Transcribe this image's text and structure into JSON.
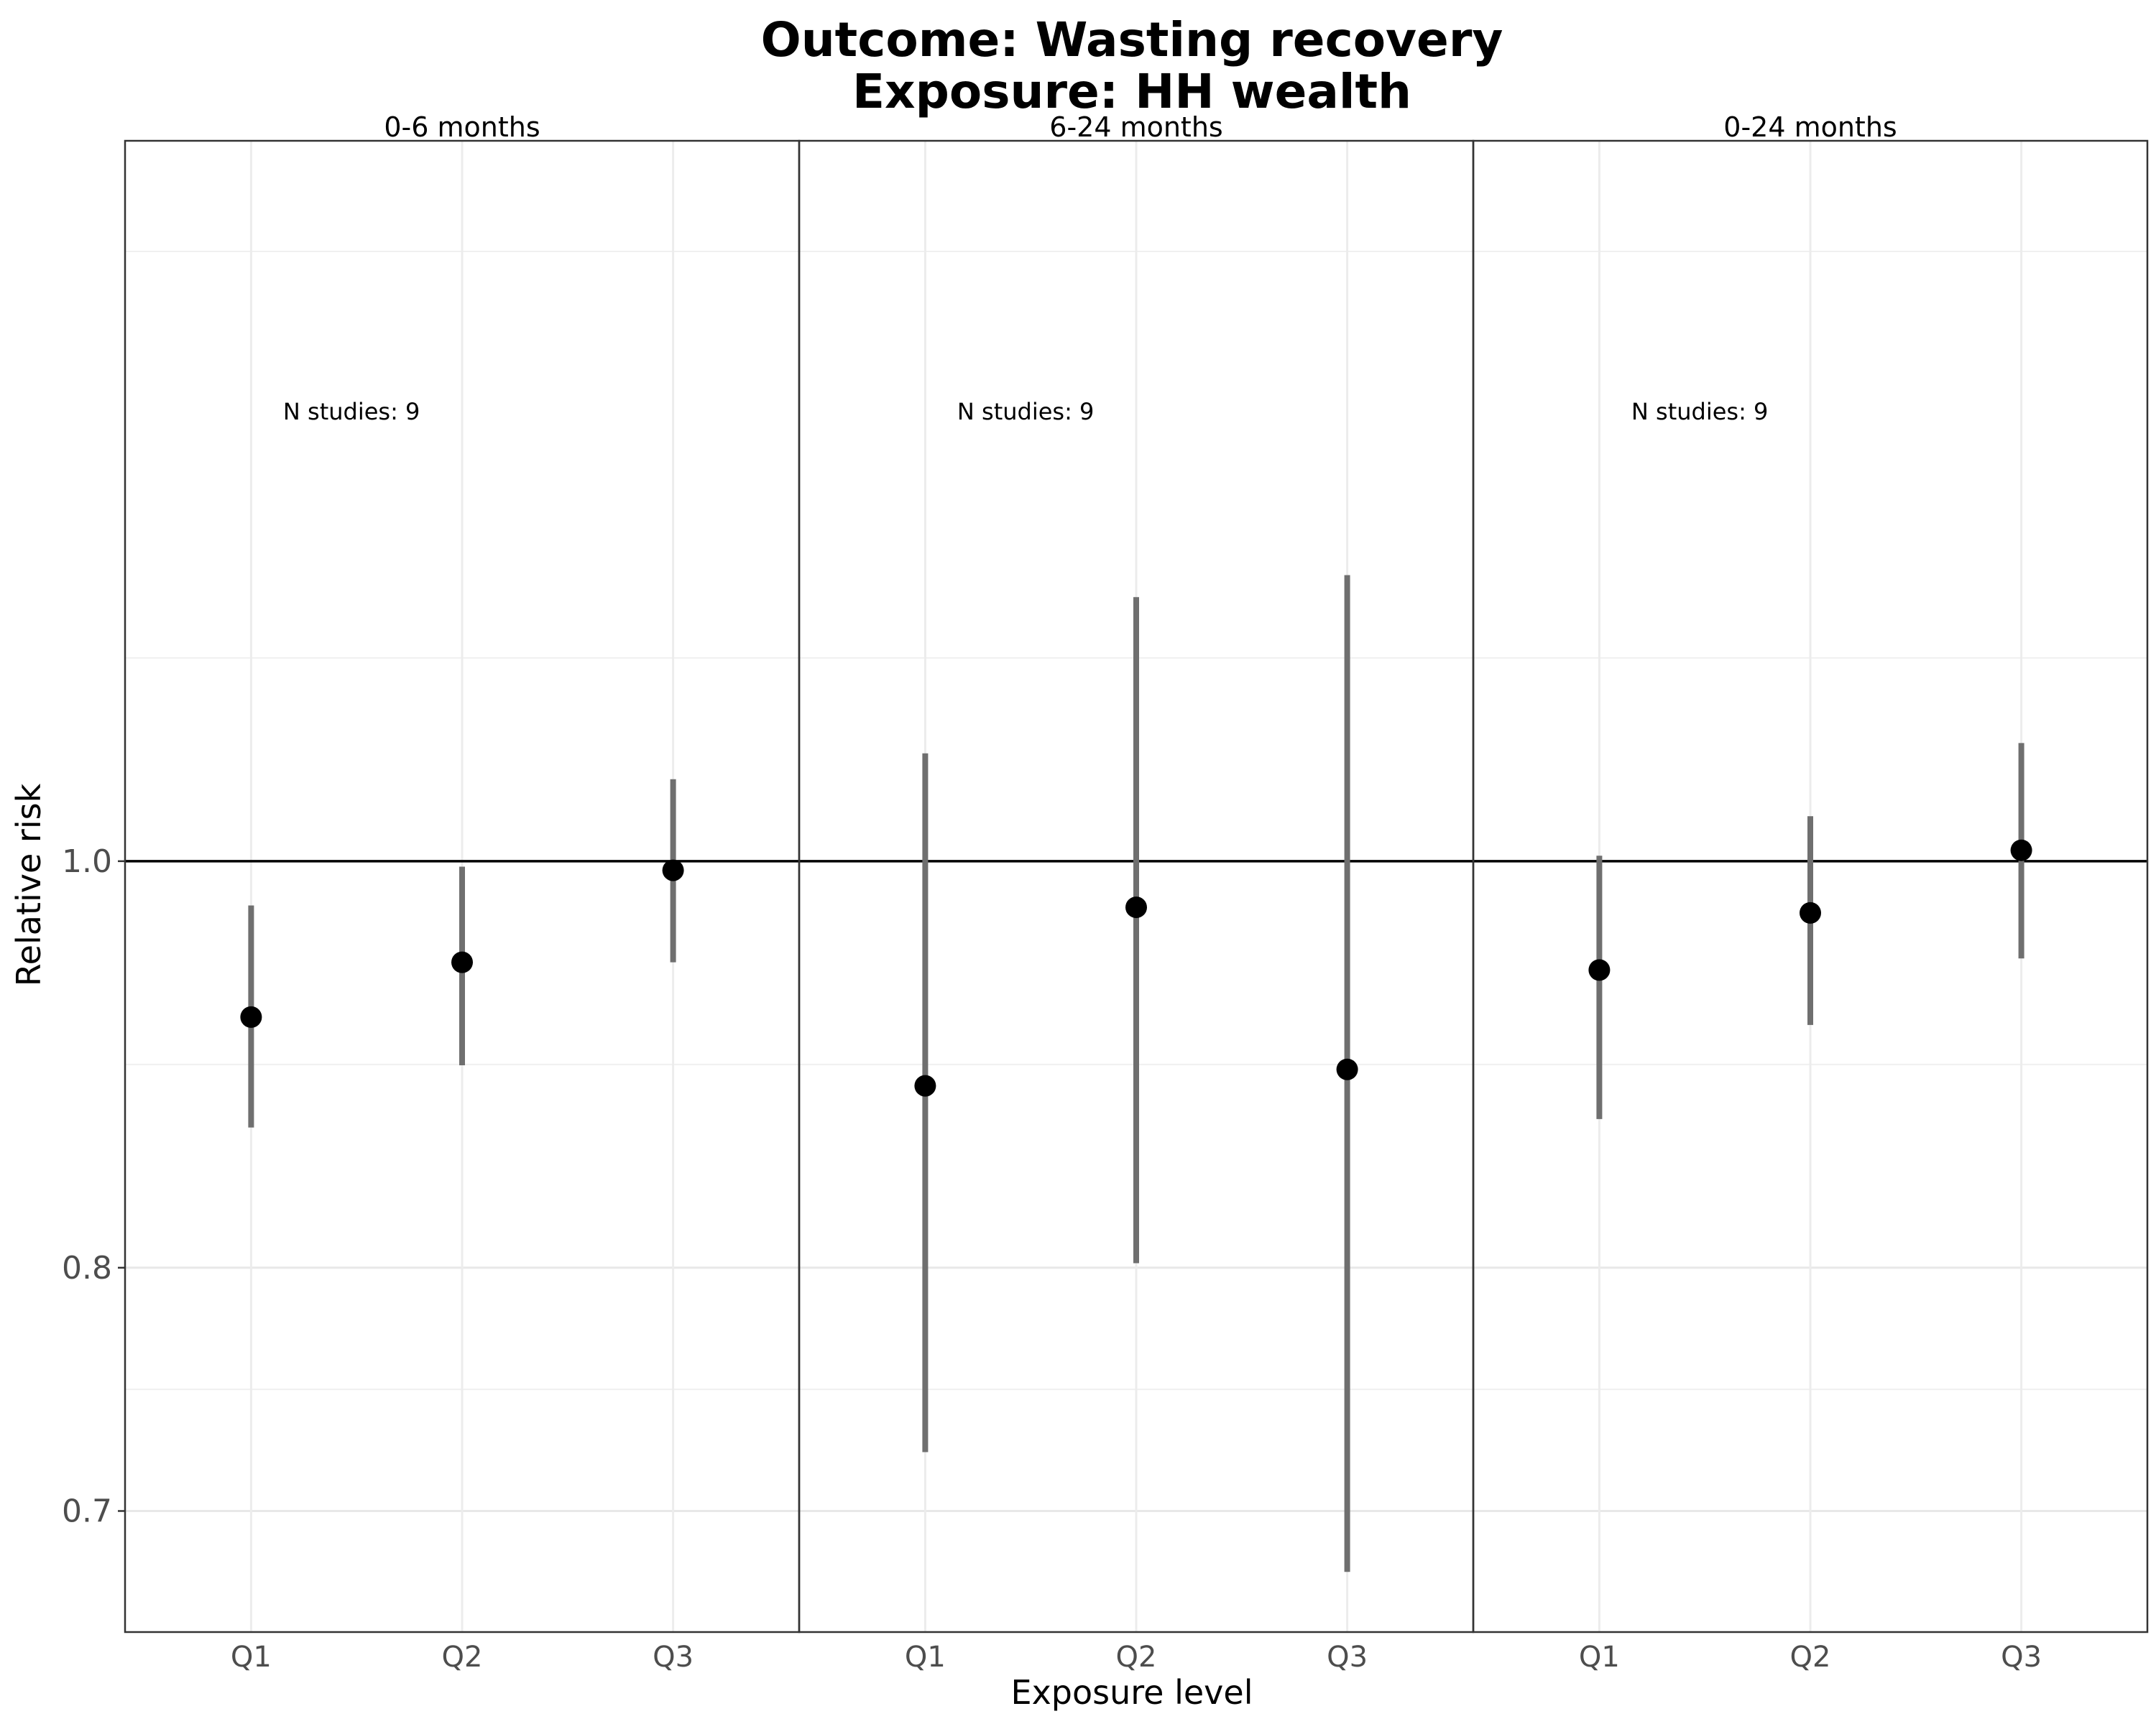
{
  "chart_data": {
    "type": "scatter",
    "title": "Outcome: Wasting recovery",
    "subtitle": "Exposure: HH wealth",
    "xlabel": "Exposure level",
    "ylabel": "Relative risk",
    "y_scale": "log",
    "ylim": [
      0.655,
      1.485
    ],
    "y_ticks": [
      0.7,
      0.8,
      1.0
    ],
    "y_tick_labels": [
      "0.7",
      "0.8",
      "1.0"
    ],
    "reference_line": 1.0,
    "grid": true,
    "categories": [
      "Q1",
      "Q2",
      "Q3"
    ],
    "panels": [
      {
        "label": "0-6 months",
        "annotation": "N studies: 9",
        "points": [
          {
            "x": "Q1",
            "y": 0.918,
            "lower": 0.864,
            "upper": 0.976
          },
          {
            "x": "Q2",
            "y": 0.946,
            "lower": 0.894,
            "upper": 0.997
          },
          {
            "x": "Q3",
            "y": 0.995,
            "lower": 0.946,
            "upper": 1.046
          }
        ]
      },
      {
        "label": "6-24 months",
        "annotation": "N studies: 9",
        "points": [
          {
            "x": "Q1",
            "y": 0.884,
            "lower": 0.723,
            "upper": 1.061
          },
          {
            "x": "Q2",
            "y": 0.975,
            "lower": 0.802,
            "upper": 1.156
          },
          {
            "x": "Q3",
            "y": 0.892,
            "lower": 0.677,
            "upper": 1.17
          }
        ]
      },
      {
        "label": "0-24 months",
        "annotation": "N studies: 9",
        "points": [
          {
            "x": "Q1",
            "y": 0.942,
            "lower": 0.868,
            "upper": 1.003
          },
          {
            "x": "Q2",
            "y": 0.972,
            "lower": 0.914,
            "upper": 1.025
          },
          {
            "x": "Q3",
            "y": 1.006,
            "lower": 0.948,
            "upper": 1.067
          }
        ]
      }
    ]
  }
}
